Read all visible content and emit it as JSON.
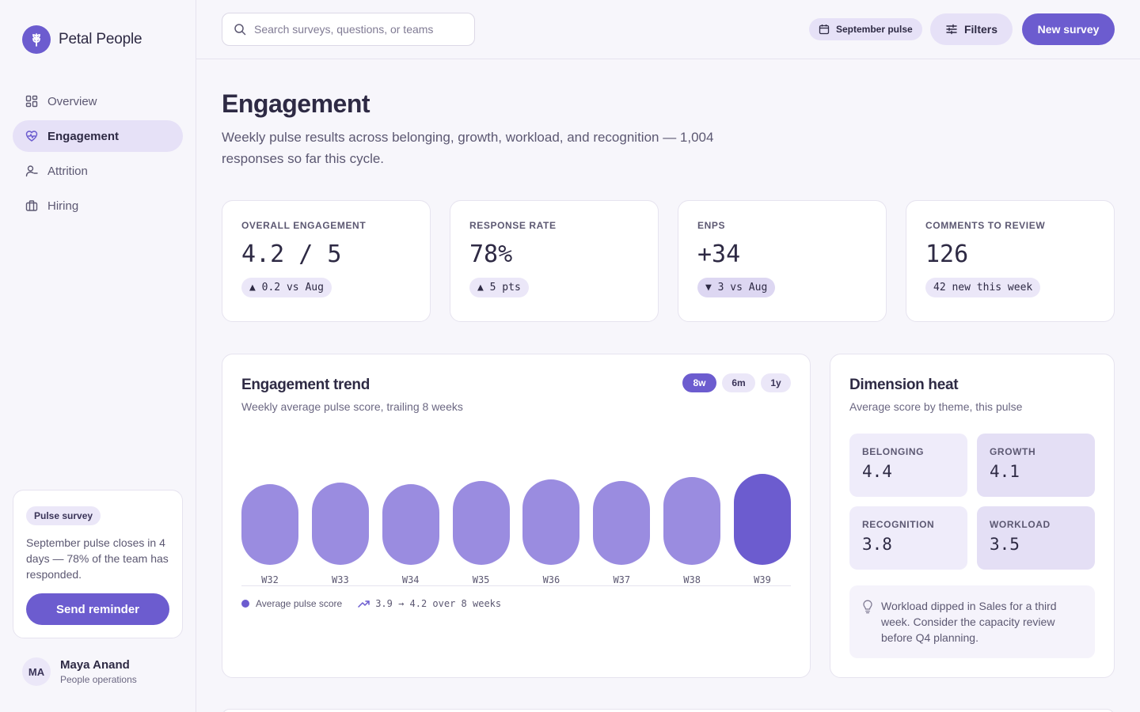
{
  "brand": {
    "name": "Petal People"
  },
  "nav": {
    "items": [
      {
        "label": "Overview",
        "icon": "grid-icon"
      },
      {
        "label": "Engagement",
        "icon": "heart-pulse-icon",
        "active": true
      },
      {
        "label": "Attrition",
        "icon": "user-minus-icon"
      },
      {
        "label": "Hiring",
        "icon": "briefcase-icon"
      }
    ]
  },
  "pulse_card": {
    "tag": "Pulse survey",
    "text": "September pulse closes in 4 days — 78% of the team has responded.",
    "button": "Send reminder"
  },
  "user": {
    "initials": "MA",
    "name": "Maya Anand",
    "role": "People operations"
  },
  "topbar": {
    "search_placeholder": "Search surveys, questions, or teams",
    "period": "September pulse",
    "filters": "Filters",
    "new_survey": "New survey"
  },
  "page": {
    "title": "Engagement",
    "subtitle": "Weekly pulse results across belonging, growth, workload, and recognition — 1,004 responses so far this cycle."
  },
  "kpis": [
    {
      "label": "Overall engagement",
      "value": "4.2 / 5",
      "delta": "▲ 0.2 vs Aug"
    },
    {
      "label": "Response rate",
      "value": "78%",
      "delta": "▲ 5 pts"
    },
    {
      "label": "eNPS",
      "value": "+34",
      "delta": "▼ 3 vs Aug"
    },
    {
      "label": "Comments to review",
      "value": "126",
      "delta": "42 new this week"
    }
  ],
  "trend": {
    "title": "Engagement trend",
    "subtitle": "Weekly average pulse score, trailing 8 weeks",
    "ranges": [
      "8w",
      "6m",
      "1y"
    ],
    "active_range": "8w",
    "legend": "Average pulse score",
    "summary": "3.9 → 4.2 over 8 weeks"
  },
  "chart_data": {
    "type": "bar",
    "categories": [
      "W32",
      "W33",
      "W34",
      "W35",
      "W36",
      "W37",
      "W38",
      "W39"
    ],
    "values": [
      3.9,
      3.95,
      3.9,
      4.0,
      4.05,
      4.0,
      4.1,
      4.2
    ],
    "series": [
      {
        "name": "Average pulse score",
        "values": [
          3.9,
          3.95,
          3.9,
          4.0,
          4.05,
          4.0,
          4.1,
          4.2
        ]
      }
    ],
    "highlight_category": "W39",
    "colors": {
      "bar": "#9a8ce0",
      "highlight": "#6c5ccf"
    }
  },
  "heat": {
    "title": "Dimension heat",
    "subtitle": "Average score by theme, this pulse",
    "cells": [
      {
        "label": "Belonging",
        "value": "4.4",
        "color": "#efecfa"
      },
      {
        "label": "Growth",
        "value": "4.1",
        "color": "#e4dff5"
      },
      {
        "label": "Recognition",
        "value": "3.8",
        "color": "#efecfa"
      },
      {
        "label": "Workload",
        "value": "3.5",
        "color": "#e4dff5"
      }
    ],
    "note": "Workload dipped in Sales for a third week. Consider the capacity review before Q4 planning."
  },
  "colors": {
    "accent": "#6c5ccf",
    "accent_soft": "#e6e1f7"
  }
}
